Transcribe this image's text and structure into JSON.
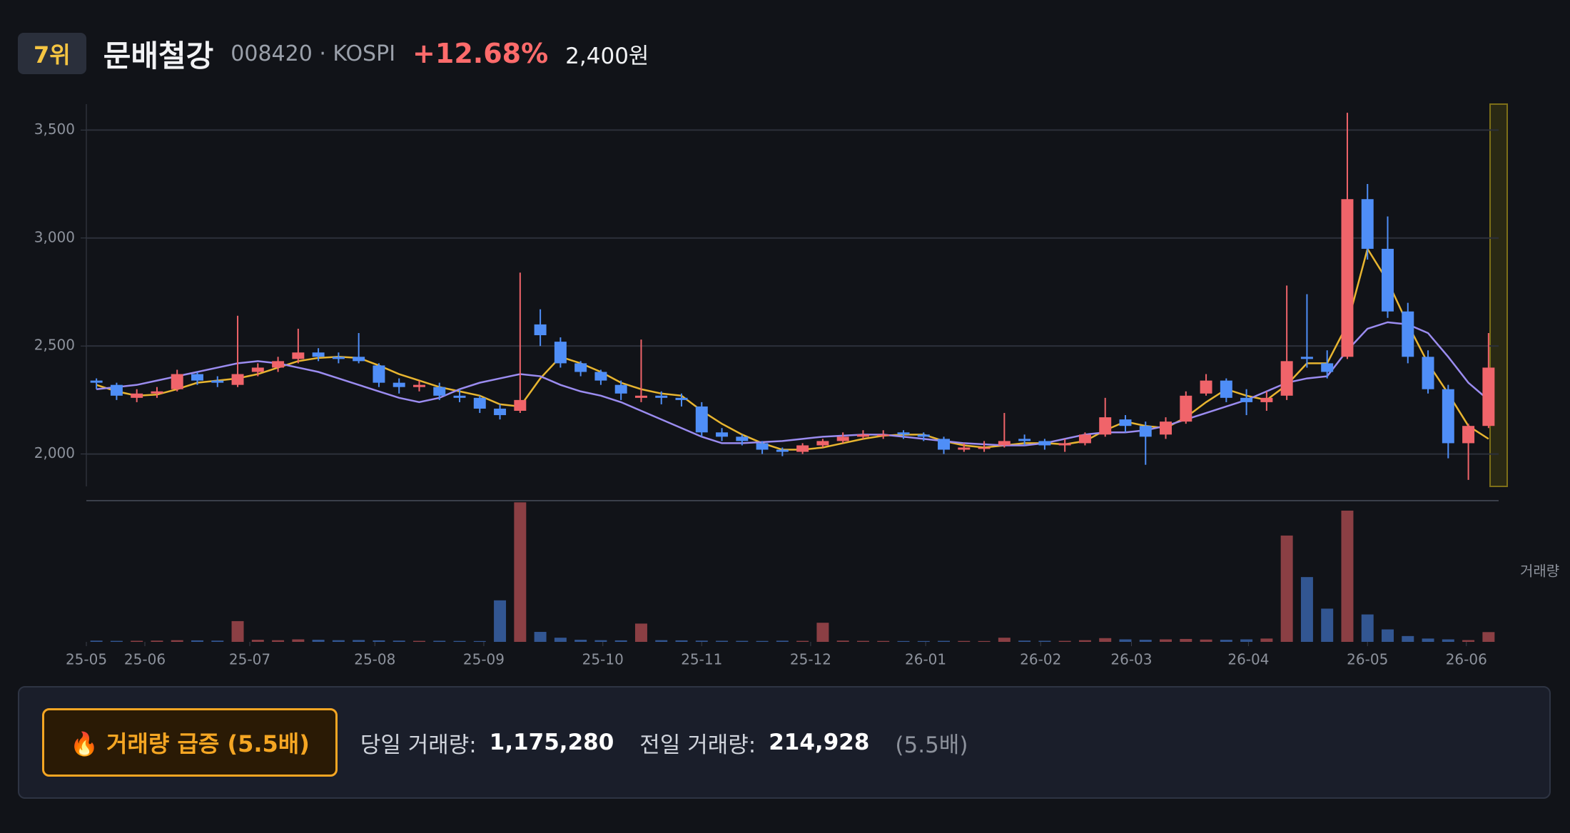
{
  "header": {
    "rank": "7위",
    "name": "문배철강",
    "code": "008420 · KOSPI",
    "change": "+12.68%",
    "price": "2,400원"
  },
  "chart_data": {
    "type": "candlestick",
    "xlim": [
      -0.5,
      69.5
    ],
    "xticks": [
      {
        "value": -0.5,
        "label": "25-05"
      },
      {
        "value": 2.4,
        "label": "25-06"
      },
      {
        "value": 7.6,
        "label": "25-07"
      },
      {
        "value": 13.8,
        "label": "25-08"
      },
      {
        "value": 19.2,
        "label": "25-09"
      },
      {
        "value": 25.1,
        "label": "25-10"
      },
      {
        "value": 30.0,
        "label": "25-11"
      },
      {
        "value": 35.4,
        "label": "25-12"
      },
      {
        "value": 41.1,
        "label": "26-01"
      },
      {
        "value": 46.8,
        "label": "26-02"
      },
      {
        "value": 51.3,
        "label": "26-03"
      },
      {
        "value": 57.1,
        "label": "26-04"
      },
      {
        "value": 63.0,
        "label": "26-05"
      },
      {
        "value": 67.9,
        "label": "26-06"
      }
    ],
    "ylim": [
      1850,
      3620
    ],
    "yticks": [
      {
        "value": 2000,
        "label": "2,000"
      },
      {
        "value": 2500,
        "label": "2,500"
      },
      {
        "value": 3000,
        "label": "3,000"
      },
      {
        "value": 3500,
        "label": "3,500"
      }
    ],
    "grid": true,
    "color_up": "#f0646a",
    "color_down": "#4f8ef7",
    "open": [
      2340,
      2320,
      2260,
      2280,
      2300,
      2370,
      2340,
      2320,
      2380,
      2400,
      2440,
      2470,
      2450,
      2450,
      2410,
      2330,
      2310,
      2310,
      2270,
      2260,
      2210,
      2200,
      2600,
      2520,
      2420,
      2380,
      2320,
      2260,
      2270,
      2260,
      2220,
      2100,
      2080,
      2050,
      2020,
      2010,
      2040,
      2060,
      2080,
      2090,
      2100,
      2090,
      2070,
      2020,
      2030,
      2040,
      2070,
      2060,
      2040,
      2050,
      2090,
      2160,
      2130,
      2090,
      2150,
      2280,
      2340,
      2260,
      2240,
      2270,
      2450,
      2420,
      2450,
      3180,
      2950,
      2660,
      2450,
      2300,
      2050,
      2130
    ],
    "high": [
      2350,
      2330,
      2300,
      2310,
      2390,
      2380,
      2360,
      2640,
      2420,
      2450,
      2580,
      2490,
      2470,
      2560,
      2420,
      2350,
      2340,
      2330,
      2300,
      2270,
      2230,
      2840,
      2670,
      2540,
      2430,
      2390,
      2340,
      2530,
      2290,
      2280,
      2240,
      2120,
      2090,
      2060,
      2030,
      2050,
      2070,
      2100,
      2110,
      2110,
      2110,
      2100,
      2080,
      2050,
      2060,
      2190,
      2090,
      2070,
      2070,
      2100,
      2260,
      2180,
      2150,
      2170,
      2290,
      2370,
      2350,
      2300,
      2290,
      2780,
      2740,
      2480,
      3580,
      3250,
      3100,
      2700,
      2480,
      2320,
      2140,
      2560
    ],
    "low": [
      2300,
      2250,
      2240,
      2260,
      2290,
      2320,
      2310,
      2310,
      2360,
      2380,
      2420,
      2430,
      2420,
      2420,
      2310,
      2280,
      2290,
      2250,
      2240,
      2190,
      2160,
      2190,
      2500,
      2400,
      2360,
      2320,
      2250,
      2240,
      2230,
      2220,
      2080,
      2060,
      2040,
      2000,
      1990,
      2000,
      2030,
      2050,
      2070,
      2070,
      2070,
      2060,
      2000,
      2010,
      2010,
      2030,
      2040,
      2020,
      2010,
      2040,
      2080,
      2100,
      1950,
      2070,
      2140,
      2270,
      2240,
      2180,
      2200,
      2250,
      2400,
      2350,
      2440,
      2900,
      2630,
      2420,
      2280,
      1980,
      1880,
      2120
    ],
    "close": [
      2330,
      2270,
      2280,
      2290,
      2370,
      2340,
      2330,
      2370,
      2400,
      2430,
      2470,
      2450,
      2440,
      2430,
      2330,
      2310,
      2320,
      2270,
      2260,
      2210,
      2180,
      2250,
      2550,
      2420,
      2380,
      2340,
      2280,
      2270,
      2260,
      2250,
      2100,
      2080,
      2060,
      2020,
      2010,
      2040,
      2060,
      2080,
      2090,
      2090,
      2090,
      2080,
      2020,
      2030,
      2030,
      2060,
      2060,
      2040,
      2050,
      2090,
      2170,
      2130,
      2080,
      2150,
      2270,
      2340,
      2260,
      2240,
      2260,
      2430,
      2440,
      2380,
      3180,
      2950,
      2660,
      2450,
      2300,
      2050,
      2130,
      2400
    ],
    "moving_averages": [
      {
        "color": "#e8b530",
        "values": [
          2320,
          2290,
          2270,
          2275,
          2300,
          2330,
          2340,
          2350,
          2370,
          2400,
          2430,
          2445,
          2450,
          2445,
          2410,
          2370,
          2340,
          2310,
          2290,
          2270,
          2230,
          2220,
          2350,
          2450,
          2420,
          2380,
          2330,
          2300,
          2280,
          2270,
          2200,
          2140,
          2090,
          2050,
          2020,
          2020,
          2030,
          2050,
          2070,
          2085,
          2090,
          2090,
          2060,
          2040,
          2030,
          2040,
          2050,
          2050,
          2045,
          2060,
          2110,
          2150,
          2130,
          2120,
          2170,
          2240,
          2300,
          2270,
          2250,
          2320,
          2420,
          2420,
          2600,
          2950,
          2800,
          2600,
          2420,
          2280,
          2130,
          2070
        ]
      },
      {
        "color": "#9b8cf0",
        "values": [
          2300,
          2310,
          2320,
          2340,
          2360,
          2380,
          2400,
          2420,
          2430,
          2420,
          2400,
          2380,
          2350,
          2320,
          2290,
          2260,
          2240,
          2260,
          2300,
          2330,
          2350,
          2370,
          2360,
          2320,
          2290,
          2270,
          2240,
          2200,
          2160,
          2120,
          2080,
          2050,
          2050,
          2055,
          2060,
          2070,
          2080,
          2085,
          2090,
          2090,
          2080,
          2070,
          2060,
          2050,
          2045,
          2040,
          2040,
          2050,
          2070,
          2090,
          2100,
          2100,
          2110,
          2130,
          2160,
          2190,
          2220,
          2250,
          2290,
          2330,
          2350,
          2360,
          2480,
          2580,
          2610,
          2600,
          2560,
          2450,
          2330,
          2250
        ]
      }
    ],
    "volume": {
      "label": "거래량",
      "ylim": [
        0,
        17000000
      ],
      "values": [
        150000,
        120000,
        130000,
        150000,
        200000,
        180000,
        150000,
        2500000,
        250000,
        200000,
        300000,
        250000,
        200000,
        220000,
        180000,
        150000,
        120000,
        130000,
        110000,
        100000,
        5000000,
        16800000,
        1200000,
        500000,
        250000,
        200000,
        180000,
        2200000,
        200000,
        180000,
        150000,
        130000,
        120000,
        110000,
        140000,
        120000,
        2300000,
        150000,
        120000,
        110000,
        100000,
        100000,
        120000,
        110000,
        100000,
        500000,
        150000,
        130000,
        120000,
        200000,
        450000,
        300000,
        250000,
        300000,
        350000,
        280000,
        250000,
        300000,
        400000,
        12800000,
        7800000,
        4000000,
        15800000,
        3300000,
        1500000,
        700000,
        400000,
        300000,
        214928,
        1175280
      ]
    }
  },
  "alert": {
    "badge": "🔥 거래량 급증 (5.5배)",
    "today_label": "당일 거래량:",
    "today_value": "1,175,280",
    "prev_label": "전일 거래량:",
    "prev_value": "214,928",
    "ratio": "(5.5배)"
  }
}
